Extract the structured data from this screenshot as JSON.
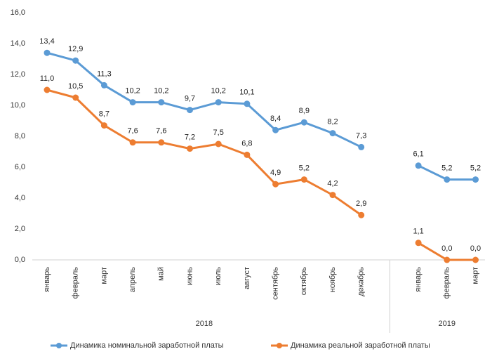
{
  "chart_data": {
    "type": "line",
    "groups": [
      {
        "name": "2018",
        "categories": [
          "январь",
          "февраль",
          "март",
          "апрель",
          "май",
          "июнь",
          "июль",
          "август",
          "сентябрь",
          "октябрь",
          "ноябрь",
          "декабрь"
        ]
      },
      {
        "name": "2019",
        "categories": [
          "январь",
          "февраль",
          "март"
        ]
      }
    ],
    "series": [
      {
        "name": "Динамика номинальной заработной платы",
        "color": "#5b9bd5",
        "values": [
          13.4,
          12.9,
          11.3,
          10.2,
          10.2,
          9.7,
          10.2,
          10.1,
          8.4,
          8.9,
          8.2,
          7.3,
          6.1,
          5.2,
          5.2
        ],
        "value_labels": [
          "13,4",
          "12,9",
          "11,3",
          "10,2",
          "10,2",
          "9,7",
          "10,2",
          "10,1",
          "8,4",
          "8,9",
          "8,2",
          "7,3",
          "6,1",
          "5,2",
          "5,2"
        ]
      },
      {
        "name": "Динамика реальной заработной платы",
        "color": "#ed7d31",
        "values": [
          11.0,
          10.5,
          8.7,
          7.6,
          7.6,
          7.2,
          7.5,
          6.8,
          4.9,
          5.2,
          4.2,
          2.9,
          1.1,
          0.0,
          0.0
        ],
        "value_labels": [
          "11,0",
          "10,5",
          "8,7",
          "7,6",
          "7,6",
          "7,2",
          "7,5",
          "6,8",
          "4,9",
          "5,2",
          "4,2",
          "2,9",
          "1,1",
          "0,0",
          "0,0"
        ]
      }
    ],
    "ylim": [
      0,
      16
    ],
    "yticks": [
      {
        "value": 0,
        "label": "0,0"
      },
      {
        "value": 2,
        "label": "2,0"
      },
      {
        "value": 4,
        "label": "4,0"
      },
      {
        "value": 6,
        "label": "6,0"
      },
      {
        "value": 8,
        "label": "8,0"
      },
      {
        "value": 10,
        "label": "10,0"
      },
      {
        "value": 12,
        "label": "12,0"
      },
      {
        "value": 14,
        "label": "14,0"
      },
      {
        "value": 16,
        "label": "16,0"
      }
    ],
    "legend": "bottom"
  }
}
